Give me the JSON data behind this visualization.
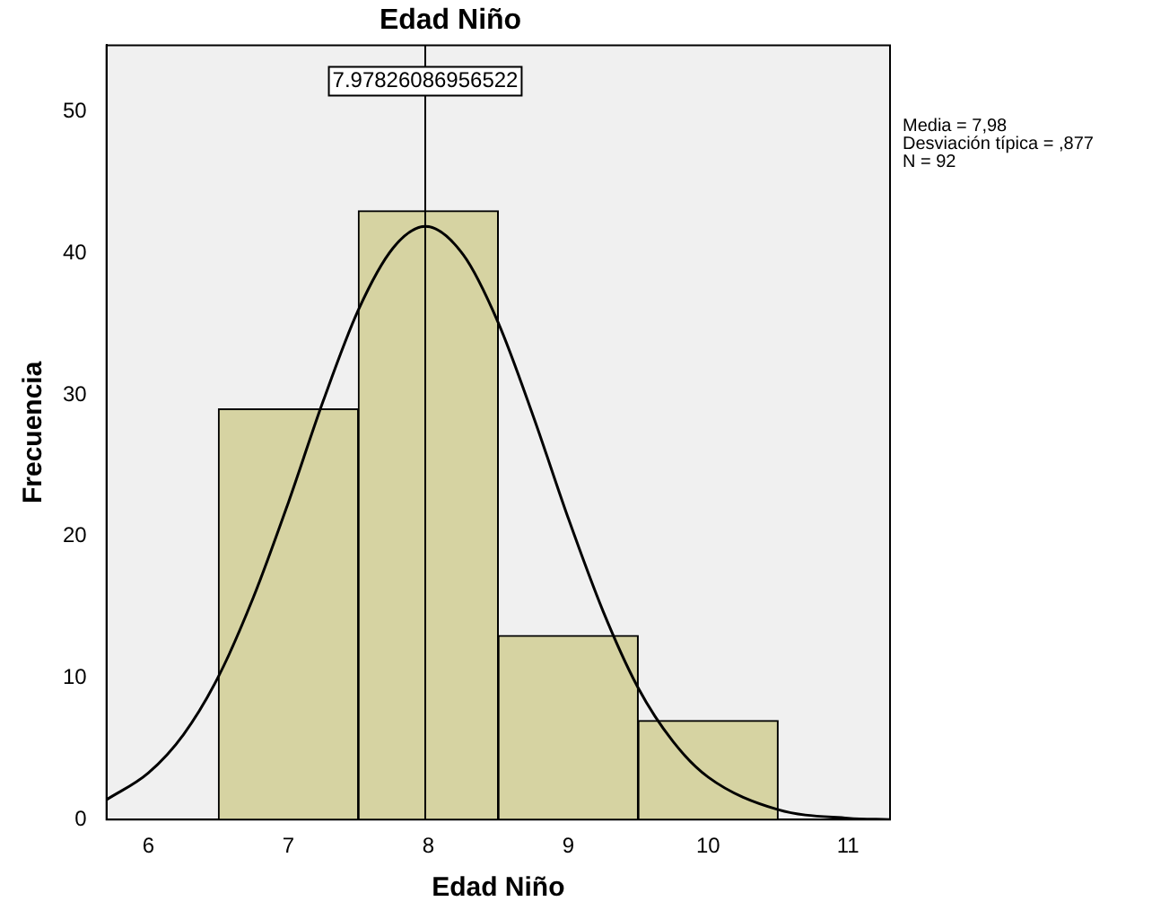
{
  "chart_data": {
    "type": "histogram",
    "title": "Edad Niño",
    "xlabel": "Edad Niño",
    "ylabel": "Frecuencia",
    "bins": [
      6.5,
      7.5,
      8.5,
      9.5,
      10.5
    ],
    "values": [
      29,
      43,
      13,
      7
    ],
    "color": "#d6d3a2",
    "series": [
      {
        "type": "line",
        "color": "#000000",
        "x": [
          5.7,
          6,
          6.25,
          6.5,
          6.75,
          7,
          7.25,
          7.5,
          7.75,
          7.98,
          8.25,
          8.5,
          8.75,
          9,
          9.25,
          9.5,
          9.75,
          10,
          10.5,
          11,
          11.3
        ],
        "values": [
          1.4,
          3.3,
          6,
          10.1,
          15.7,
          22.4,
          29.6,
          36,
          40.4,
          41.9,
          39.9,
          35.1,
          28.5,
          21.3,
          14.7,
          9.3,
          5.5,
          3,
          0.7,
          0.1,
          0
        ]
      }
    ],
    "ref_lines": [
      {
        "axis": "x",
        "value": 7.97826086956522,
        "label": "7.97826086956522",
        "color": "#000000"
      }
    ],
    "annotations": [
      "Media = 7,98",
      "Desviación típica = ,877",
      "N = 92"
    ],
    "xlim": [
      5.7,
      11.3
    ],
    "xticks": [
      6,
      7,
      8,
      9,
      10,
      11
    ],
    "ylim": [
      0,
      54.7
    ],
    "yticks": [
      0,
      10,
      20,
      30,
      40,
      50
    ],
    "grid": false,
    "legend": false
  }
}
